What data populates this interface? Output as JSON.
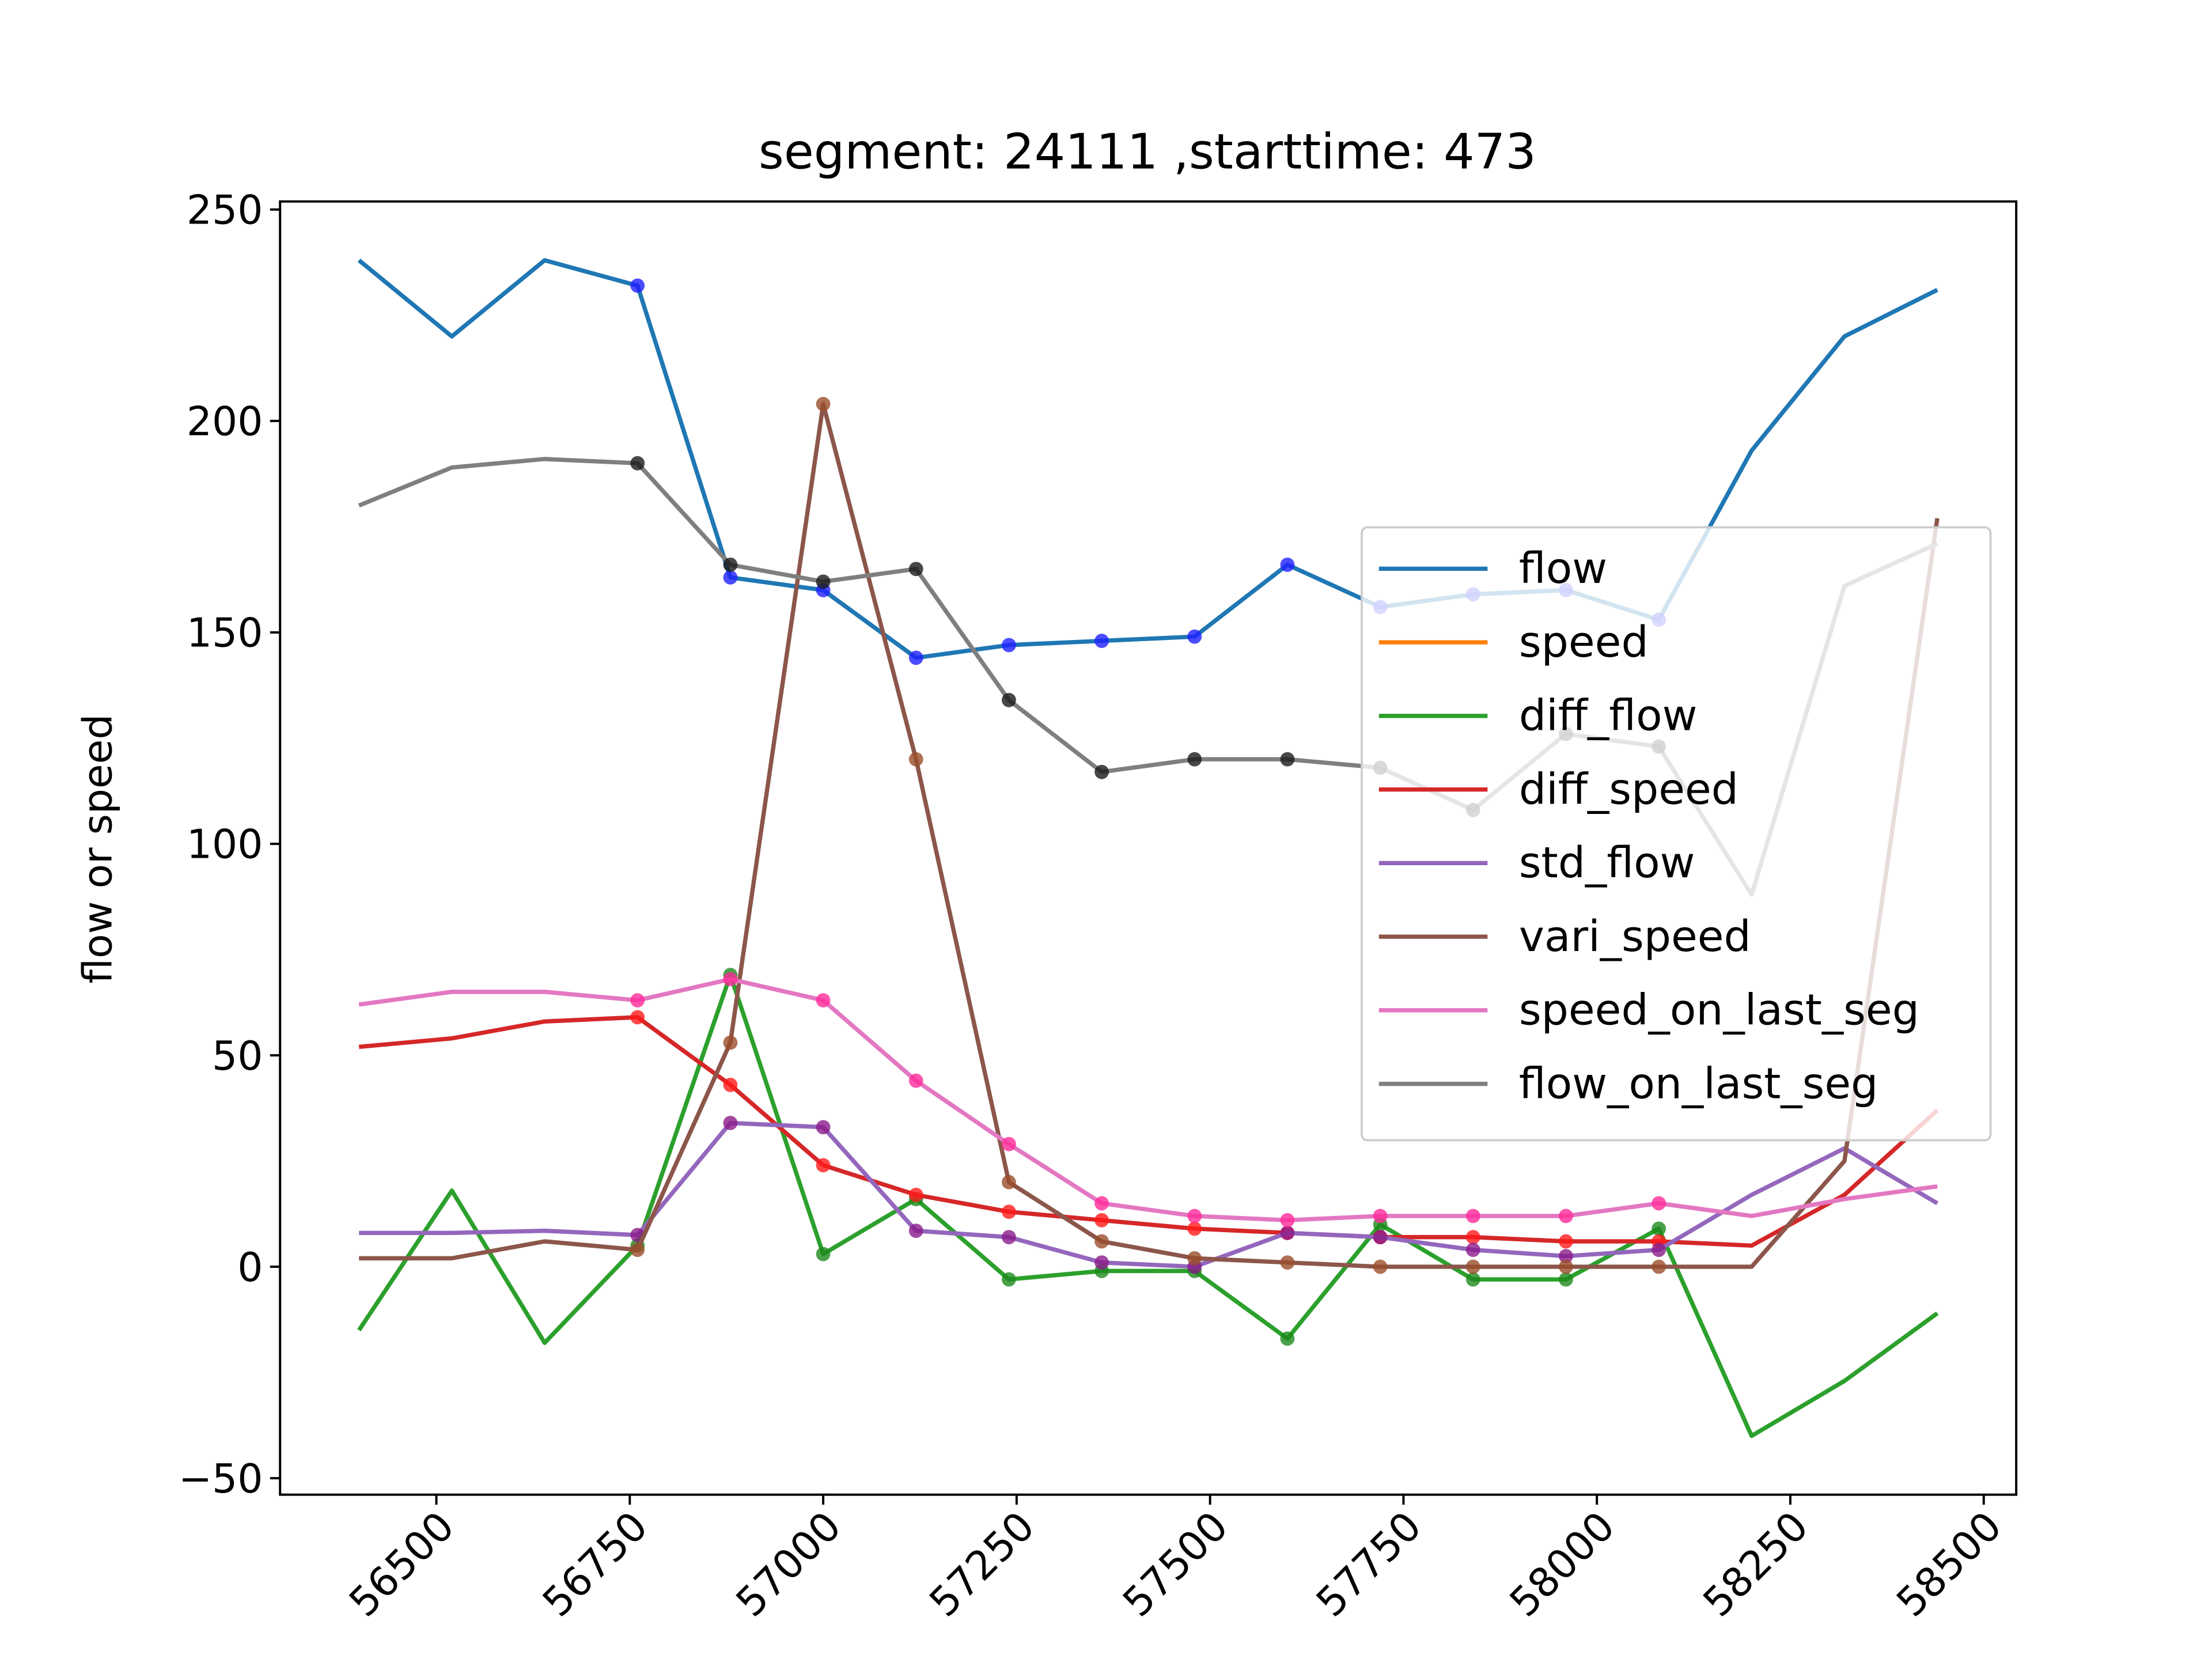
{
  "chart_data": {
    "type": "line",
    "title": "segment: 24111 ,starttime: 473",
    "ylabel": "flow or speed",
    "x": [
      56400,
      56520,
      56640,
      56760,
      56880,
      57000,
      57120,
      57240,
      57360,
      57480,
      57600,
      57720,
      57840,
      57960,
      58080,
      58200,
      58320,
      58440
    ],
    "xlim": [
      56298,
      58542
    ],
    "xticks": [
      56500,
      56750,
      57000,
      57250,
      57500,
      57750,
      58000,
      58250,
      58500
    ],
    "ylim": [
      -53.9,
      251.9
    ],
    "yticks": [
      {
        "value": -50,
        "label": "−50"
      },
      0,
      50,
      100,
      150,
      200,
      250
    ],
    "legend": "center right",
    "marked": [
      false,
      false,
      false,
      true,
      true,
      true,
      true,
      true,
      true,
      true,
      true,
      true,
      true,
      true,
      true,
      false,
      false,
      false
    ],
    "series": [
      {
        "name": "flow",
        "color": "#1f77b4",
        "marker_color": "#1f1fff",
        "values": [
          238,
          220,
          238,
          232,
          163,
          160,
          144,
          147,
          148,
          149,
          166,
          156,
          159,
          160,
          153,
          193,
          220,
          231
        ]
      },
      {
        "name": "speed",
        "color": "#ff7f0e",
        "marker_color": "#ff7f0e",
        "values": [
          null,
          null,
          null,
          null,
          null,
          null,
          null,
          null,
          null,
          null,
          null,
          null,
          null,
          null,
          null,
          null,
          null,
          null
        ]
      },
      {
        "name": "diff_flow",
        "color": "#2ca02c",
        "marker_color": "#1d8a1d",
        "values": [
          -15,
          18,
          -18,
          5,
          69,
          3,
          16,
          -3,
          -1,
          -1,
          -17,
          10,
          -3,
          -3,
          9,
          -40,
          -27,
          -11
        ]
      },
      {
        "name": "diff_speed",
        "color": "#d62728",
        "marker_color": "#ff1a1a",
        "values": [
          52,
          54,
          58,
          59,
          43,
          24,
          17,
          13,
          11,
          9,
          8,
          7,
          7,
          6,
          6,
          5,
          17,
          37
        ]
      },
      {
        "name": "std_flow",
        "color": "#9467bd",
        "marker_color": "#8a1a8a",
        "values": [
          8,
          8,
          8.5,
          7.5,
          34,
          33,
          8.5,
          7,
          1,
          0,
          8,
          7,
          4,
          2.5,
          4,
          17,
          28,
          15
        ]
      },
      {
        "name": "vari_speed",
        "color": "#8c564b",
        "marker_color": "#9a4d2a",
        "values": [
          2,
          2,
          6,
          4,
          53,
          204,
          120,
          20,
          6,
          2,
          1,
          0,
          0,
          0,
          0,
          0,
          25,
          177
        ]
      },
      {
        "name": "speed_on_last_seg",
        "color": "#e377c2",
        "marker_color": "#ff2a9a",
        "values": [
          62,
          65,
          65,
          63,
          68,
          63,
          44,
          29,
          15,
          12,
          11,
          12,
          12,
          12,
          15,
          12,
          16,
          19
        ]
      },
      {
        "name": "flow_on_last_seg",
        "color": "#7f7f7f",
        "marker_color": "#1a1a1a",
        "values": [
          180,
          189,
          191,
          190,
          166,
          162,
          165,
          134,
          117,
          120,
          120,
          118,
          108,
          126,
          123,
          88,
          161,
          171
        ]
      }
    ]
  }
}
